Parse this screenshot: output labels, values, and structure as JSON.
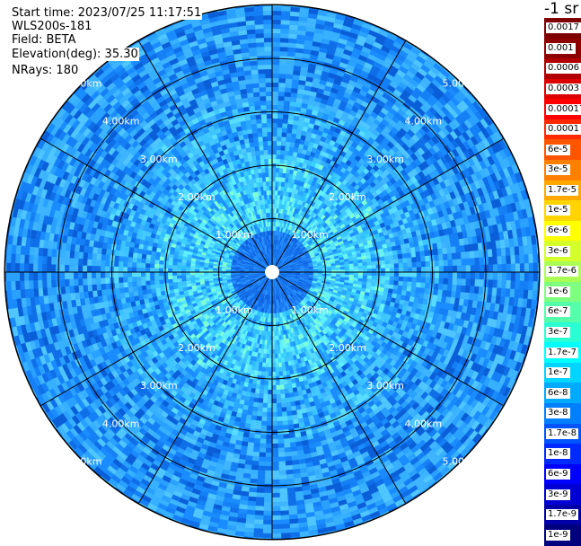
{
  "info": {
    "start_time": "Start time: 2023/07/25 11:17:51",
    "instrument": "WLS200s-181",
    "field": "Field: BETA",
    "elevation": "Elevation(deg): 35.30",
    "nrays": "NRays: 180"
  },
  "colorbar": {
    "unit_label": "-1 sr",
    "labels": [
      "0.0017",
      "0.001",
      "0.0006",
      "0.0003",
      "0.00017",
      "0.0001",
      "6e-5",
      "3e-5",
      "1.7e-5",
      "1e-5",
      "6e-6",
      "3e-6",
      "1.7e-6",
      "1e-6",
      "6e-7",
      "3e-7",
      "1.7e-7",
      "1e-7",
      "6e-8",
      "3e-8",
      "1.7e-8",
      "1e-8",
      "6e-9",
      "3e-9",
      "1.7e-9",
      "1e-9"
    ],
    "colors": [
      "#7f0000",
      "#8e0000",
      "#b00000",
      "#dc0000",
      "#ff0000",
      "#ff2a00",
      "#ff5500",
      "#ff7f00",
      "#ffa900",
      "#ffd400",
      "#ffff00",
      "#d4ff2a",
      "#aaff55",
      "#7fff7f",
      "#55ffaa",
      "#2affd4",
      "#00ffff",
      "#00d4ff",
      "#00aaff",
      "#007fff",
      "#0055ff",
      "#002aff",
      "#0000ff",
      "#0000d4",
      "#0000aa",
      "#00007f"
    ]
  },
  "ring_labels": {
    "r1": "1.00km",
    "r2": "2.00km",
    "r3": "3.00km",
    "r4": "4.00km",
    "r5": "5.00km"
  }
}
